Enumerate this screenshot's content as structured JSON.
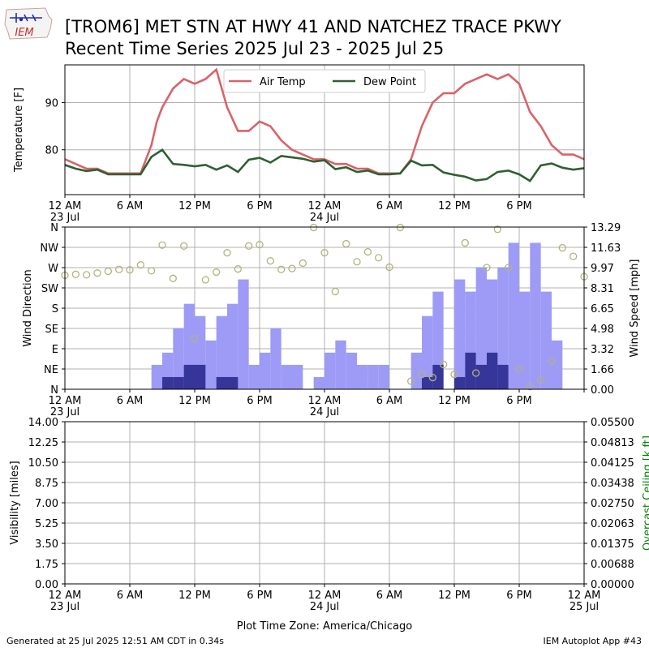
{
  "header": {
    "title_line1": "[TROM6] MET STN AT HWY 41 AND NATCHEZ TRACE PKWY",
    "title_line2": "Recent Time Series 2025 Jul 23 - 2025 Jul 25",
    "logo_text": "IEM"
  },
  "footer": {
    "generated": "Generated at 25 Jul 2025 12:51 AM CDT in 0.34s",
    "app": "IEM Autoplot App #43"
  },
  "colors": {
    "air_temp": "#d9636b",
    "dew_point": "#2f5f32",
    "wind_speed": "#9d9bf6",
    "wind_gust": "#36359a",
    "wind_dir": "#b3b37a",
    "ceiling_label": "#008000",
    "grid": "#b0b0b0"
  },
  "x_axis": {
    "hours": [
      0,
      6,
      12,
      18,
      24,
      30,
      36,
      42,
      48
    ],
    "tick_labels": [
      "12 AM",
      "6 AM",
      "12 PM",
      "6 PM",
      "12 AM",
      "6 AM",
      "12 PM",
      "6 PM",
      "12 AM"
    ],
    "date_labels": [
      {
        "hour": 0,
        "text": "23 Jul"
      },
      {
        "hour": 24,
        "text": "24 Jul"
      },
      {
        "hour": 48,
        "text": "25 Jul"
      }
    ],
    "xlabel": "Plot Time Zone: America/Chicago",
    "range_hours": [
      0,
      48
    ]
  },
  "chart_data": [
    {
      "type": "line",
      "ylabel": "Temperature [F]",
      "ylim": [
        70.5,
        98
      ],
      "yticks": [
        80,
        90
      ],
      "legend": "top-center",
      "grid": true,
      "series": [
        {
          "name": "Air Temp",
          "x": [
            0,
            1,
            2,
            3,
            4,
            5,
            6,
            7,
            8,
            8.5,
            9,
            10,
            11,
            12,
            13,
            14,
            15,
            16,
            17,
            18,
            19,
            20,
            21,
            22,
            23,
            24,
            25,
            26,
            27,
            28,
            29,
            30,
            31,
            32,
            33,
            34,
            35,
            36,
            37,
            38,
            39,
            40,
            41,
            42,
            43,
            44,
            45,
            46,
            47,
            48
          ],
          "y": [
            78,
            77,
            76,
            76,
            75,
            75,
            75,
            75,
            81,
            86,
            89,
            93,
            95,
            94,
            95,
            97,
            89,
            84,
            84,
            86,
            85,
            82,
            80,
            79,
            78,
            78,
            77,
            77,
            76,
            76,
            75,
            75,
            75,
            78,
            85,
            90,
            92,
            92,
            94,
            95,
            96,
            95,
            96,
            94,
            88,
            85,
            81,
            79,
            79,
            78
          ]
        },
        {
          "name": "Dew Point",
          "x": [
            0,
            1,
            2,
            3,
            4,
            5,
            6,
            7,
            8,
            9,
            10,
            11,
            12,
            13,
            14,
            15,
            16,
            17,
            18,
            19,
            20,
            21,
            22,
            23,
            24,
            25,
            26,
            27,
            28,
            29,
            30,
            31,
            32,
            33,
            34,
            35,
            36,
            37,
            38,
            39,
            40,
            41,
            42,
            43,
            44,
            45,
            46,
            47,
            48
          ],
          "y": [
            76.8,
            76,
            75.5,
            75.8,
            74.8,
            74.8,
            74.8,
            74.8,
            78.5,
            80,
            77,
            76.8,
            76.5,
            76.8,
            75.8,
            76.7,
            75.3,
            77.9,
            78.3,
            77.3,
            78.7,
            78.4,
            78.1,
            77.5,
            77.8,
            75.9,
            76.3,
            75.3,
            75.6,
            74.8,
            74.8,
            75,
            77.7,
            76.7,
            76.8,
            75.2,
            74.7,
            74.3,
            73.5,
            73.8,
            75.3,
            75.6,
            74.8,
            73.4,
            76.7,
            77.1,
            76.2,
            75.8,
            76.1
          ]
        }
      ]
    },
    {
      "type": "bar",
      "ylabel": "Wind Direction",
      "ylabel_right": "Wind Speed [mph]",
      "direction_ticks": [
        "N",
        "NE",
        "E",
        "SE",
        "S",
        "SW",
        "W",
        "NW",
        "N"
      ],
      "speed_ticks": [
        "0.00",
        "1.66",
        "3.32",
        "4.98",
        "6.65",
        "8.31",
        "9.97",
        "11.63",
        "13.29"
      ],
      "speed_max": 13.29,
      "grid": true,
      "series": [
        {
          "name": "Wind Speed",
          "x": [
            0,
            1,
            2,
            3,
            4,
            5,
            6,
            7,
            8,
            9,
            10,
            11,
            12,
            13,
            14,
            15,
            16,
            17,
            18,
            19,
            20,
            21,
            22,
            23,
            24,
            25,
            26,
            27,
            28,
            29,
            30,
            31,
            32,
            33,
            34,
            35,
            36,
            37,
            38,
            39,
            40,
            41,
            42,
            43,
            44,
            45,
            46,
            47
          ],
          "values": [
            0,
            0,
            0,
            0,
            0,
            0,
            0,
            0,
            2,
            3,
            5,
            7,
            6,
            4,
            6,
            7,
            9,
            2,
            3,
            5,
            2,
            2,
            0,
            1,
            3,
            4,
            3,
            2,
            2,
            2,
            0,
            0,
            3,
            6,
            8,
            0,
            9,
            8,
            10,
            9,
            10,
            12,
            8,
            12,
            8,
            4,
            0,
            0
          ]
        },
        {
          "name": "Wind Gust",
          "x": [
            0,
            1,
            2,
            3,
            4,
            5,
            6,
            7,
            8,
            9,
            10,
            11,
            12,
            13,
            14,
            15,
            16,
            17,
            18,
            19,
            20,
            21,
            22,
            23,
            24,
            25,
            26,
            27,
            28,
            29,
            30,
            31,
            32,
            33,
            34,
            35,
            36,
            37,
            38,
            39,
            40,
            41,
            42,
            43,
            44,
            45,
            46,
            47
          ],
          "values": [
            0,
            0,
            0,
            0,
            0,
            0,
            0,
            0,
            0,
            1,
            1,
            2,
            2,
            0,
            1,
            1,
            0,
            0,
            0,
            0,
            0,
            0,
            0,
            0,
            0,
            0,
            0,
            0,
            0,
            0,
            0,
            0,
            0,
            1,
            2,
            0,
            1,
            3,
            2,
            3,
            2,
            0,
            0,
            0,
            0,
            0,
            0,
            0
          ]
        },
        {
          "name": "Wind Direction",
          "x": [
            0,
            1,
            2,
            3,
            4,
            5,
            6,
            7,
            8,
            9,
            10,
            11,
            12,
            13,
            14,
            15,
            16,
            17,
            18,
            19,
            20,
            21,
            22,
            23,
            24,
            25,
            26,
            27,
            28,
            29,
            30,
            31,
            32,
            33,
            34,
            35,
            36,
            37,
            38,
            39,
            40,
            41,
            42,
            43,
            44,
            45,
            46,
            47,
            48
          ],
          "degrees": [
            253,
            255,
            254,
            258,
            262,
            266,
            265,
            276,
            263,
            320,
            246,
            318,
            112,
            243,
            260,
            303,
            267,
            318,
            321,
            285,
            266,
            268,
            280,
            359,
            303,
            217,
            323,
            283,
            305,
            292,
            271,
            359,
            18,
            33,
            26,
            55,
            33,
            325,
            36,
            270,
            355,
            270,
            45,
            6,
            20,
            63,
            314,
            295,
            250
          ]
        }
      ]
    },
    {
      "type": "line",
      "ylabel": "Visibility [miles]",
      "ylabel_right": "Overcast Ceiling [k ft]",
      "yticks_left": [
        "0.00",
        "1.75",
        "3.50",
        "5.25",
        "7.00",
        "8.75",
        "10.50",
        "12.25",
        "14.00"
      ],
      "yticks_right": [
        "0.00000",
        "0.00688",
        "0.01375",
        "0.02063",
        "0.02750",
        "0.03438",
        "0.04125",
        "0.04813",
        "0.05500"
      ],
      "grid": true,
      "series": []
    }
  ]
}
